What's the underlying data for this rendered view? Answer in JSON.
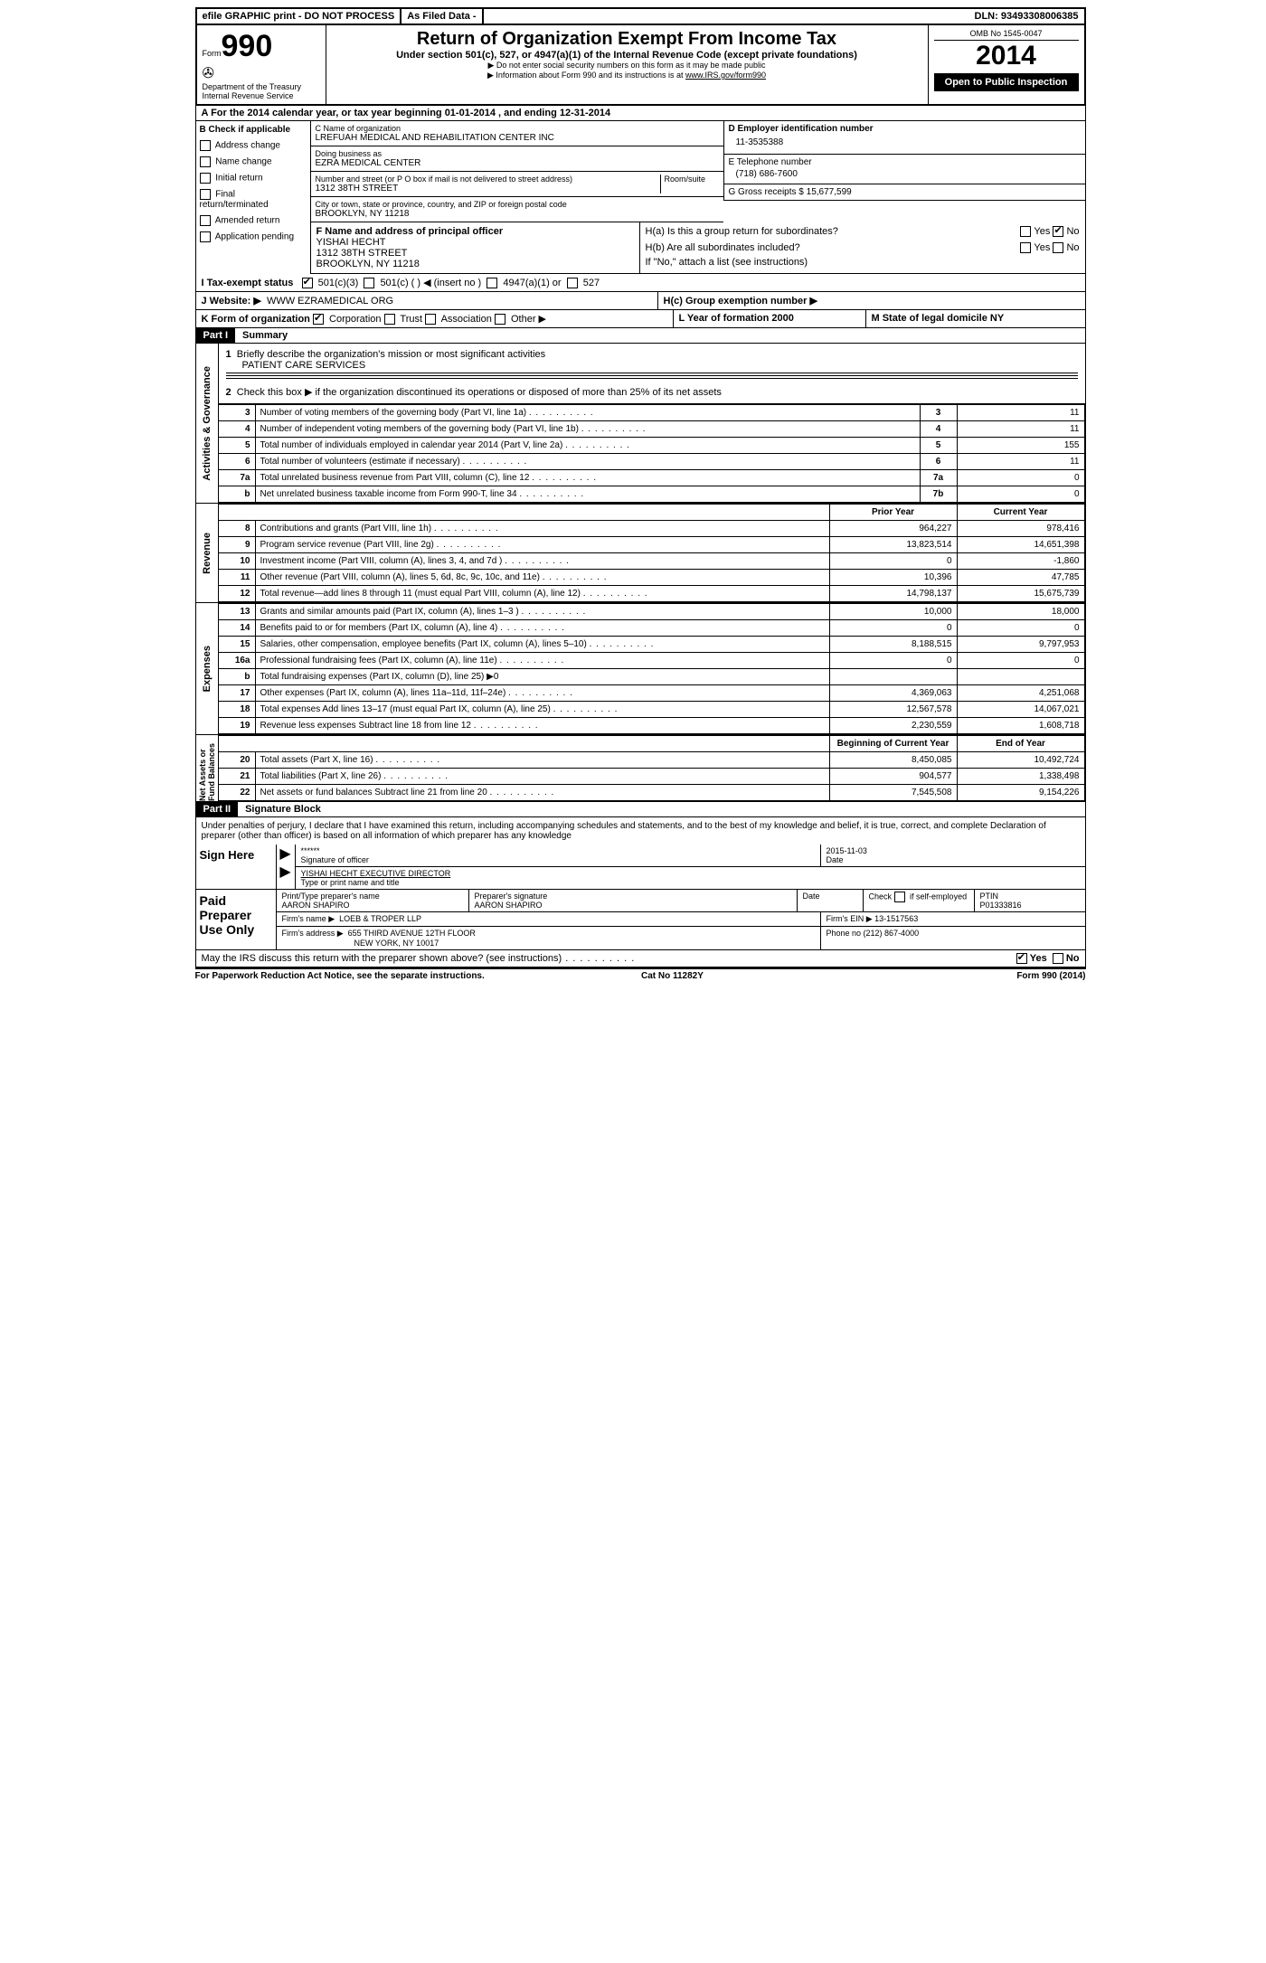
{
  "topbar": {
    "efile": "efile GRAPHIC print - DO NOT PROCESS",
    "asfiled": "As Filed Data -",
    "dln_label": "DLN:",
    "dln": "93493308006385"
  },
  "header": {
    "form_label": "Form",
    "form_no": "990",
    "dept": "Department of the Treasury",
    "irs": "Internal Revenue Service",
    "title": "Return of Organization Exempt From Income Tax",
    "subtitle1": "Under section 501(c), 527, or 4947(a)(1) of the Internal Revenue Code (except private foundations)",
    "bullet1": "Do not enter social security numbers on this form as it may be made public",
    "bullet2_pre": "Information about Form 990 and its instructions is at ",
    "bullet2_link": "www.IRS.gov/form990",
    "omb": "OMB No 1545-0047",
    "year": "2014",
    "open": "Open to Public Inspection"
  },
  "row_a": "A For the 2014 calendar year, or tax year beginning 01-01-2014    , and ending 12-31-2014",
  "col_b": {
    "header": "B Check if applicable",
    "items": [
      "Address change",
      "Name change",
      "Initial return",
      "Final return/terminated",
      "Amended return",
      "Application pending"
    ]
  },
  "col_c": {
    "name_label": "C Name of organization",
    "name": "LREFUAH MEDICAL AND REHABILITATION CENTER INC",
    "dba_label": "Doing business as",
    "dba": "EZRA MEDICAL CENTER",
    "street_label": "Number and street (or P O  box if mail is not delivered to street address)",
    "room_label": "Room/suite",
    "street": "1312 38TH STREET",
    "city_label": "City or town, state or province, country, and ZIP or foreign postal code",
    "city": "BROOKLYN, NY  11218",
    "f_label": "F    Name and address of principal officer",
    "f_name": "YISHAI HECHT",
    "f_street": "1312 38TH STREET",
    "f_city": "BROOKLYN, NY  11218"
  },
  "col_d": {
    "d_label": "D Employer identification number",
    "ein": "11-3535388",
    "e_label": "E Telephone number",
    "phone": "(718) 686-7600",
    "g_label": "G Gross receipts $",
    "g_val": "15,677,599",
    "h_a": "H(a)  Is this a group return for subordinates?",
    "h_b": "H(b)  Are all subordinates included?",
    "h_b_note": "If \"No,\" attach a list  (see instructions)",
    "h_c": "H(c)  Group exemption number ▶",
    "yes": "Yes",
    "no": "No"
  },
  "row_i": {
    "label": "I   Tax-exempt status",
    "o1": "501(c)(3)",
    "o2": "501(c) (   ) ◀ (insert no )",
    "o3": "4947(a)(1) or",
    "o4": "527"
  },
  "row_j": {
    "label": "J   Website: ▶",
    "value": "WWW EZRAMEDICAL ORG"
  },
  "row_k": {
    "label": "K Form of organization",
    "o1": "Corporation",
    "o2": "Trust",
    "o3": "Association",
    "o4": "Other ▶"
  },
  "row_l": {
    "l": "L Year of formation  2000",
    "m": "M State of legal domicile  NY"
  },
  "part1": {
    "label": "Part I",
    "title": "Summary"
  },
  "summary": {
    "l1_label": "Briefly describe the organization's mission or most significant activities",
    "l1_val": "PATIENT CARE SERVICES",
    "l2": "Check this box ▶    if the organization discontinued its operations or disposed of more than 25% of its net assets",
    "gov_label": "Activities & Governance",
    "rev_label": "Revenue",
    "exp_label": "Expenses",
    "na_label": "Net Assets or Fund Balances",
    "prior": "Prior Year",
    "current": "Current Year",
    "boy": "Beginning of Current Year",
    "eoy": "End of Year",
    "rows_gov": [
      {
        "n": "3",
        "d": "Number of voting members of the governing body (Part VI, line 1a)",
        "ln": "3",
        "v": "11"
      },
      {
        "n": "4",
        "d": "Number of independent voting members of the governing body (Part VI, line 1b)",
        "ln": "4",
        "v": "11"
      },
      {
        "n": "5",
        "d": "Total number of individuals employed in calendar year 2014 (Part V, line 2a)",
        "ln": "5",
        "v": "155"
      },
      {
        "n": "6",
        "d": "Total number of volunteers (estimate if necessary)",
        "ln": "6",
        "v": "11"
      },
      {
        "n": "7a",
        "d": "Total unrelated business revenue from Part VIII, column (C), line 12",
        "ln": "7a",
        "v": "0"
      },
      {
        "n": "b",
        "d": "Net unrelated business taxable income from Form 990-T, line 34",
        "ln": "7b",
        "v": "0"
      }
    ],
    "rows_rev": [
      {
        "n": "8",
        "d": "Contributions and grants (Part VIII, line 1h)",
        "py": "964,227",
        "cy": "978,416"
      },
      {
        "n": "9",
        "d": "Program service revenue (Part VIII, line 2g)",
        "py": "13,823,514",
        "cy": "14,651,398"
      },
      {
        "n": "10",
        "d": "Investment income (Part VIII, column (A), lines 3, 4, and 7d )",
        "py": "0",
        "cy": "-1,860"
      },
      {
        "n": "11",
        "d": "Other revenue (Part VIII, column (A), lines 5, 6d, 8c, 9c, 10c, and 11e)",
        "py": "10,396",
        "cy": "47,785"
      },
      {
        "n": "12",
        "d": "Total revenue—add lines 8 through 11 (must equal Part VIII, column (A), line 12)",
        "py": "14,798,137",
        "cy": "15,675,739"
      }
    ],
    "rows_exp": [
      {
        "n": "13",
        "d": "Grants and similar amounts paid (Part IX, column (A), lines 1–3 )",
        "py": "10,000",
        "cy": "18,000"
      },
      {
        "n": "14",
        "d": "Benefits paid to or for members (Part IX, column (A), line 4)",
        "py": "0",
        "cy": "0"
      },
      {
        "n": "15",
        "d": "Salaries, other compensation, employee benefits (Part IX, column (A), lines 5–10)",
        "py": "8,188,515",
        "cy": "9,797,953"
      },
      {
        "n": "16a",
        "d": "Professional fundraising fees (Part IX, column (A), line 11e)",
        "py": "0",
        "cy": "0"
      },
      {
        "n": "b",
        "d": "Total fundraising expenses (Part IX, column (D), line 25) ▶0",
        "py": "",
        "cy": ""
      },
      {
        "n": "17",
        "d": "Other expenses (Part IX, column (A), lines 11a–11d, 11f–24e)",
        "py": "4,369,063",
        "cy": "4,251,068"
      },
      {
        "n": "18",
        "d": "Total expenses  Add lines 13–17 (must equal Part IX, column (A), line 25)",
        "py": "12,567,578",
        "cy": "14,067,021"
      },
      {
        "n": "19",
        "d": "Revenue less expenses  Subtract line 18 from line 12",
        "py": "2,230,559",
        "cy": "1,608,718"
      }
    ],
    "rows_na": [
      {
        "n": "20",
        "d": "Total assets (Part X, line 16)",
        "py": "8,450,085",
        "cy": "10,492,724"
      },
      {
        "n": "21",
        "d": "Total liabilities (Part X, line 26)",
        "py": "904,577",
        "cy": "1,338,498"
      },
      {
        "n": "22",
        "d": "Net assets or fund balances  Subtract line 21 from line 20",
        "py": "7,545,508",
        "cy": "9,154,226"
      }
    ]
  },
  "part2": {
    "label": "Part II",
    "title": "Signature Block"
  },
  "perjury": "Under penalties of perjury, I declare that I have examined this return, including accompanying schedules and statements, and to the best of my knowledge and belief, it is true, correct, and complete  Declaration of preparer (other than officer) is based on all information of which preparer has any knowledge",
  "sign": {
    "label": "Sign Here",
    "sig": "******",
    "sig_label": "Signature of officer",
    "date": "2015-11-03",
    "date_label": "Date",
    "name": "YISHAI HECHT  EXECUTIVE DIRECTOR",
    "name_label": "Type or print name and title"
  },
  "paid": {
    "label": "Paid Preparer Use Only",
    "prep_name_label": "Print/Type preparer's name",
    "prep_name": "AARON SHAPIRO",
    "prep_sig_label": "Preparer's signature",
    "prep_sig": "AARON SHAPIRO",
    "date_label": "Date",
    "check_label": "Check     if self-employed",
    "ptin_label": "PTIN",
    "ptin": "P01333816",
    "firm_name_label": "Firm's name    ▶",
    "firm_name": "LOEB & TROPER LLP",
    "firm_ein_label": "Firm's EIN ▶",
    "firm_ein": "13-1517563",
    "firm_addr_label": "Firm's address ▶",
    "firm_addr1": "655 THIRD AVENUE 12TH FLOOR",
    "firm_addr2": "NEW YORK, NY  10017",
    "phone_label": "Phone no  (212) 867-4000"
  },
  "discuss": "May the IRS discuss this return with the preparer shown above? (see instructions)",
  "footer": {
    "l": "For Paperwork Reduction Act Notice, see the separate instructions.",
    "c": "Cat No  11282Y",
    "r": "Form 990 (2014)"
  }
}
